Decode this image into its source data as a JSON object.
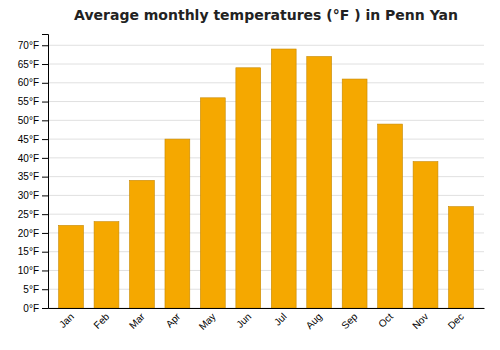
{
  "chart_data": {
    "type": "bar",
    "title": "Average monthly temperatures (°F ) in Penn Yan",
    "categories": [
      "Jan",
      "Feb",
      "Mar",
      "Apr",
      "May",
      "Jun",
      "Jul",
      "Aug",
      "Sep",
      "Oct",
      "Nov",
      "Dec"
    ],
    "values": [
      22,
      23,
      34,
      45,
      56,
      64,
      69,
      67,
      61,
      49,
      39,
      27
    ],
    "color": "#F5A800",
    "ylim": [
      0,
      73
    ],
    "yticks": [
      {
        "value": 0,
        "label": "0°F"
      },
      {
        "value": 5,
        "label": "5°F"
      },
      {
        "value": 10,
        "label": "10°F"
      },
      {
        "value": 15,
        "label": "15°F"
      },
      {
        "value": 20,
        "label": "20°F"
      },
      {
        "value": 25,
        "label": "25°F"
      },
      {
        "value": 30,
        "label": "30°F"
      },
      {
        "value": 35,
        "label": "35°F"
      },
      {
        "value": 40,
        "label": "40°F"
      },
      {
        "value": 45,
        "label": "45°F"
      },
      {
        "value": 50,
        "label": "50°F"
      },
      {
        "value": 55,
        "label": "55°F"
      },
      {
        "value": 60,
        "label": "60°F"
      },
      {
        "value": 65,
        "label": "65°F"
      },
      {
        "value": 70,
        "label": "70°F"
      }
    ],
    "grid": true
  }
}
